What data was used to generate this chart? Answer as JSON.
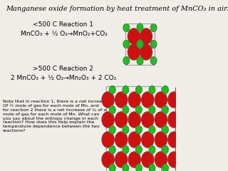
{
  "title": "Manganese oxide formation by heat treatment of MnCO₃ in air.",
  "reaction1_header": "<500 C Reaction 1",
  "reaction1_eq": "MnCO₃ + ½ O₂→MnO₂+CO₂",
  "reaction2_header": ">500 C Reaction 2",
  "reaction2_eq": "2 MnCO₃ + ½ O₂→Mn₂O₃ + 2 CO₂",
  "note_text": "Note that in reaction 1, there is a net increase\nOf ½ mole of gas for each mole of Mn, and\nfor reaction 2 there is a net increase of ¾ of a\nmole of gas for each mole of Mn. What can\nyou say about the entropy change in each\nreaction? How does this help explain the\ntemperature dependence between the two\nreactions?",
  "bg_color": "#f0ede8",
  "red_color": "#cc1111",
  "green_color": "#22bb22",
  "title_fontsize": 7,
  "body_fontsize": 6.5,
  "note_fontsize": 4.5
}
